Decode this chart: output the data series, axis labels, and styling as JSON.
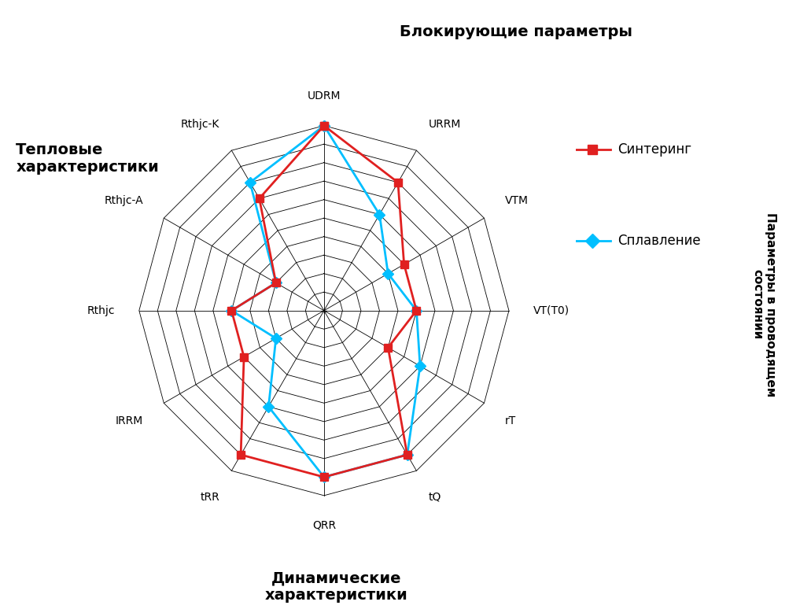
{
  "categories": [
    "UDRM",
    "URRM",
    "VTM",
    "VT(T0)",
    "rT",
    "tQ",
    "QRR",
    "tRR",
    "IRRM",
    "Rthjc",
    "Rthjc-A",
    "Rthjc-K"
  ],
  "num_vars": 12,
  "num_rings": 10,
  "sintering": [
    10,
    8,
    5,
    5,
    4,
    9,
    9,
    9,
    5,
    5,
    3,
    7
  ],
  "fusion": [
    10,
    6,
    4,
    5,
    6,
    9,
    9,
    6,
    3,
    5,
    3,
    8
  ],
  "sintering_color": "#e02020",
  "fusion_color": "#00bfff",
  "background_color": "#ffffff",
  "legend_sintering": "Синтеринг",
  "legend_fusion": "Сплавление",
  "title_top": "Блокирующие параметры",
  "title_left": "Тепловые\nхарактеристики",
  "title_right": "Параметры в проводящем\nсостоянии",
  "title_bottom": "Динамические\nхарактеристики"
}
